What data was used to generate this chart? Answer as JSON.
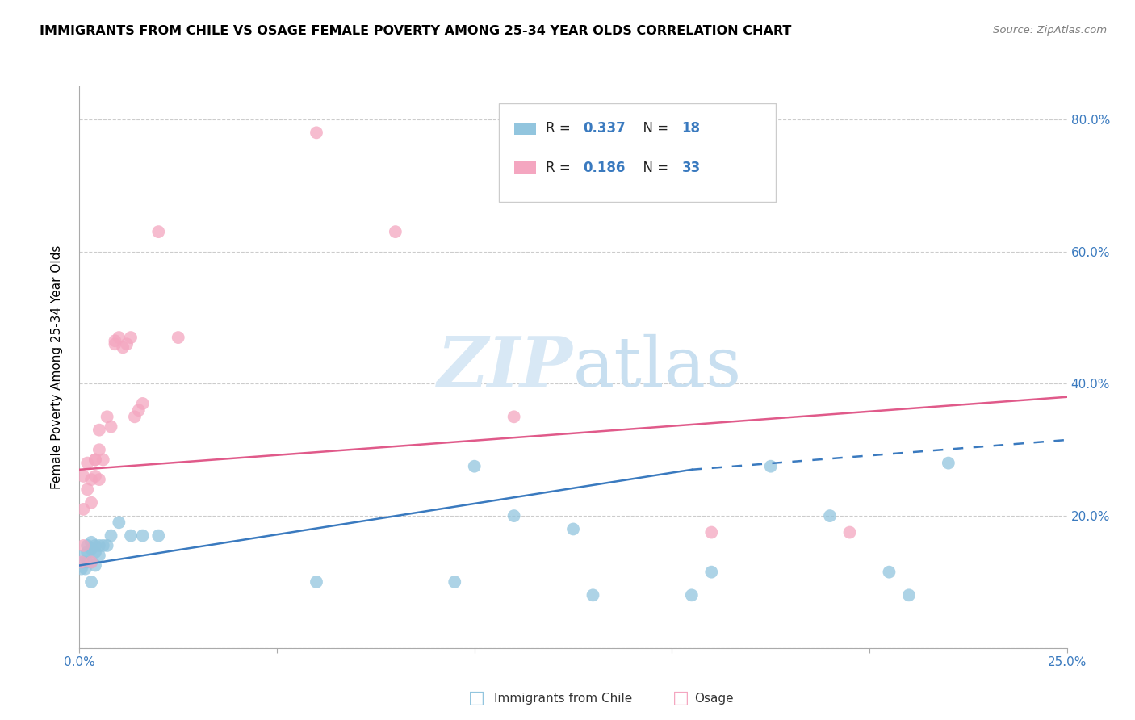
{
  "title": "IMMIGRANTS FROM CHILE VS OSAGE FEMALE POVERTY AMONG 25-34 YEAR OLDS CORRELATION CHART",
  "source": "Source: ZipAtlas.com",
  "ylabel": "Female Poverty Among 25-34 Year Olds",
  "xlim": [
    0.0,
    0.25
  ],
  "ylim": [
    0.0,
    0.85
  ],
  "xticks": [
    0.0,
    0.05,
    0.1,
    0.15,
    0.2,
    0.25
  ],
  "yticks": [
    0.0,
    0.2,
    0.4,
    0.6,
    0.8
  ],
  "color_blue": "#92c5de",
  "color_pink": "#f4a6c0",
  "trendline_blue": "#3a7abf",
  "trendline_pink": "#e05a8a",
  "watermark_color": "#d8e8f5",
  "legend_r1": "0.337",
  "legend_n1": "18",
  "legend_r2": "0.186",
  "legend_n2": "33",
  "chile_x": [
    0.0005,
    0.001,
    0.001,
    0.0015,
    0.002,
    0.002,
    0.002,
    0.003,
    0.003,
    0.003,
    0.003,
    0.004,
    0.004,
    0.004,
    0.005,
    0.005,
    0.006,
    0.007,
    0.008,
    0.01,
    0.013,
    0.016,
    0.02,
    0.06,
    0.095,
    0.1,
    0.11,
    0.125,
    0.13,
    0.155,
    0.16,
    0.175,
    0.19,
    0.205,
    0.21,
    0.22
  ],
  "chile_y": [
    0.12,
    0.13,
    0.14,
    0.12,
    0.13,
    0.145,
    0.155,
    0.1,
    0.13,
    0.15,
    0.16,
    0.125,
    0.145,
    0.155,
    0.14,
    0.155,
    0.155,
    0.155,
    0.17,
    0.19,
    0.17,
    0.17,
    0.17,
    0.1,
    0.1,
    0.275,
    0.2,
    0.18,
    0.08,
    0.08,
    0.115,
    0.275,
    0.2,
    0.115,
    0.08,
    0.28
  ],
  "osage_x": [
    0.0005,
    0.001,
    0.001,
    0.001,
    0.002,
    0.002,
    0.003,
    0.003,
    0.003,
    0.004,
    0.004,
    0.004,
    0.005,
    0.005,
    0.005,
    0.006,
    0.007,
    0.008,
    0.009,
    0.009,
    0.01,
    0.011,
    0.012,
    0.013,
    0.014,
    0.015,
    0.016,
    0.02,
    0.025,
    0.06,
    0.08,
    0.11,
    0.16,
    0.195
  ],
  "osage_y": [
    0.13,
    0.21,
    0.155,
    0.26,
    0.24,
    0.28,
    0.13,
    0.22,
    0.255,
    0.26,
    0.285,
    0.285,
    0.255,
    0.3,
    0.33,
    0.285,
    0.35,
    0.335,
    0.46,
    0.465,
    0.47,
    0.455,
    0.46,
    0.47,
    0.35,
    0.36,
    0.37,
    0.63,
    0.47,
    0.78,
    0.63,
    0.35,
    0.175,
    0.175
  ],
  "trendline_pink_x0": 0.0,
  "trendline_pink_y0": 0.27,
  "trendline_pink_x1": 0.25,
  "trendline_pink_y1": 0.38,
  "trendline_blue_solid_x0": 0.0,
  "trendline_blue_solid_y0": 0.125,
  "trendline_blue_solid_x1": 0.155,
  "trendline_blue_solid_y1": 0.27,
  "trendline_blue_dash_x0": 0.155,
  "trendline_blue_dash_y0": 0.27,
  "trendline_blue_dash_x1": 0.25,
  "trendline_blue_dash_y1": 0.315
}
